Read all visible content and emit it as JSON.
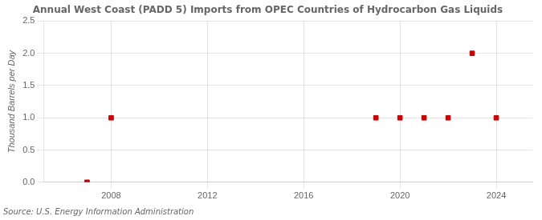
{
  "chart_data": {
    "type": "scatter",
    "title": "Annual West Coast (PADD 5) Imports from OPEC Countries of Hydrocarbon Gas Liquids",
    "y_label": "Thousand Barrels per Day",
    "annotations": [
      "Source: U.S. Energy Information Administration"
    ],
    "x": [
      2007,
      2008,
      2019,
      2020,
      2021,
      2022,
      2023,
      2024
    ],
    "values": [
      0.0,
      1.0,
      1.0,
      1.0,
      1.0,
      1.0,
      2.0,
      1.0
    ],
    "color": "#cc0000",
    "marker": "square",
    "xlim": [
      2005.2,
      2025.5
    ],
    "ylim": [
      0.0,
      2.5
    ],
    "xticks": [
      2008,
      2012,
      2016,
      2020,
      2024
    ],
    "yticks": [
      {
        "value": 0,
        "label": "0.0"
      },
      0.5,
      {
        "value": 1,
        "label": "1.0"
      },
      1.5,
      {
        "value": 2,
        "label": "2.0"
      },
      2.5
    ],
    "grid": true
  }
}
